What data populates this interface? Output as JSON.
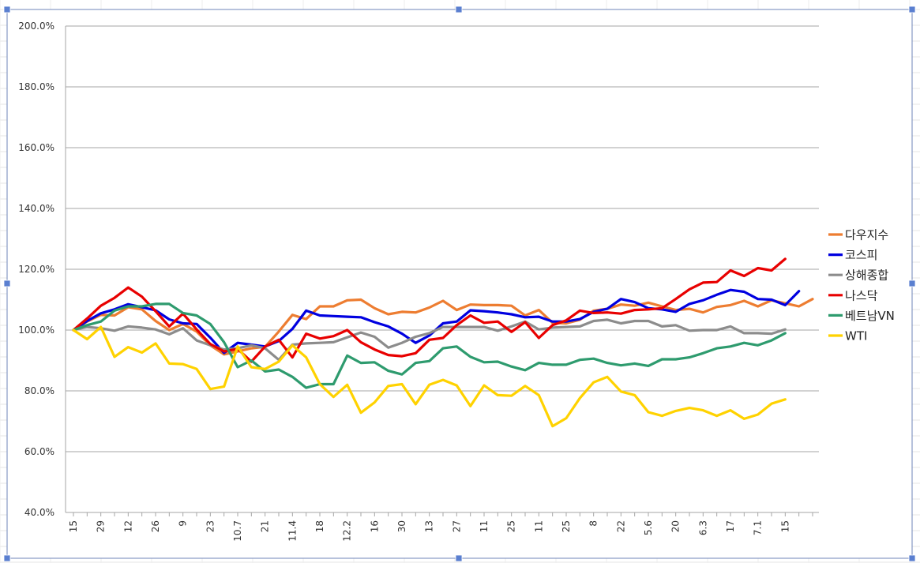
{
  "chart_data": {
    "type": "line",
    "title": "",
    "xlabel": "",
    "ylabel": "",
    "ylim": [
      40,
      200
    ],
    "y_ticks": [
      "200.0%",
      "180.0%",
      "160.0%",
      "140.0%",
      "120.0%",
      "100.0%",
      "80.0%",
      "60.0%",
      "40.0%"
    ],
    "y_tick_values": [
      200,
      180,
      160,
      140,
      120,
      100,
      80,
      60,
      40
    ],
    "x_tick_labels": [
      "15",
      "29",
      "12",
      "26",
      "9",
      "23",
      "10.7",
      "21",
      "11.4",
      "18",
      "12.2",
      "16",
      "30",
      "13",
      "27",
      "11",
      "25",
      "11",
      "25",
      "8",
      "22",
      "5.6",
      "20",
      "6.3",
      "17",
      "7.1",
      "15"
    ],
    "point_count": 55,
    "grid": "horizontal",
    "legend_position": "right",
    "series": [
      {
        "name": "다우지수",
        "color": "#ED7D31",
        "values": [
          100.0,
          102.8,
          105.0,
          104.8,
          107.5,
          106.8,
          103.0,
          100.0,
          102.0,
          99.5,
          95.0,
          92.0,
          93.0,
          94.0,
          94.5,
          99.5,
          105.0,
          103.6,
          107.8,
          107.8,
          109.8,
          110.0,
          107.2,
          105.2,
          106.0,
          105.8,
          107.4,
          109.6,
          106.6,
          108.4,
          108.2,
          108.2,
          108.0,
          104.8,
          106.6,
          102.4,
          102.2,
          103.4,
          106.4,
          107.0,
          108.4,
          108.0,
          109.0,
          107.8,
          106.6,
          107.0,
          105.8,
          107.6,
          108.2,
          109.6,
          107.8,
          109.8,
          108.8,
          107.8,
          110.2
        ]
      },
      {
        "name": "코스피",
        "color": "#0000E0",
        "values": [
          100.0,
          103.0,
          105.5,
          106.8,
          108.5,
          107.5,
          106.5,
          103.5,
          102.2,
          102.0,
          97.5,
          92.5,
          95.8,
          95.2,
          94.6,
          96.4,
          100.4,
          106.4,
          104.8,
          104.6,
          104.4,
          104.2,
          102.6,
          101.2,
          98.8,
          95.8,
          98.2,
          102.2,
          102.8,
          106.5,
          106.2,
          105.8,
          105.2,
          104.2,
          104.4,
          102.8,
          102.8,
          103.6,
          106.0,
          107.0,
          110.2,
          109.2,
          107.2,
          106.8,
          106.0,
          108.6,
          109.8,
          111.6,
          113.2,
          112.6,
          110.2,
          110.0,
          108.2,
          112.8
        ]
      },
      {
        "name": "상해종합",
        "color": "#8C8C8C",
        "values": [
          100.0,
          101.0,
          100.6,
          99.8,
          101.2,
          100.8,
          100.2,
          98.6,
          100.6,
          96.6,
          95.0,
          93.6,
          94.0,
          95.0,
          94.0,
          90.2,
          95.2,
          95.6,
          95.8,
          96.0,
          97.6,
          99.2,
          97.8,
          94.2,
          95.8,
          97.8,
          99.0,
          101.0,
          101.0,
          101.0,
          101.0,
          99.8,
          101.2,
          102.8,
          100.2,
          100.8,
          101.0,
          101.2,
          103.0,
          103.4,
          102.2,
          103.0,
          103.0,
          101.2,
          101.6,
          99.8,
          100.0,
          100.0,
          101.2,
          99.0,
          99.0,
          98.8,
          100.2
        ]
      },
      {
        "name": "나스닥",
        "color": "#E80000",
        "values": [
          100.0,
          103.8,
          108.0,
          110.6,
          114.0,
          111.0,
          106.2,
          101.2,
          105.4,
          100.2,
          95.4,
          93.0,
          93.8,
          89.6,
          94.6,
          96.8,
          91.0,
          98.8,
          97.2,
          98.0,
          100.0,
          96.0,
          93.6,
          91.8,
          91.4,
          92.4,
          96.8,
          97.4,
          101.6,
          104.8,
          102.4,
          102.8,
          99.4,
          102.6,
          97.4,
          101.6,
          103.2,
          106.4,
          105.6,
          105.8,
          105.4,
          106.6,
          106.8,
          107.2,
          110.2,
          113.4,
          115.6,
          115.8,
          119.6,
          117.8,
          120.4,
          119.6,
          123.4
        ]
      },
      {
        "name": "베트남VN",
        "color": "#2E9B6E",
        "values": [
          100.0,
          101.6,
          102.8,
          106.4,
          107.8,
          107.8,
          108.6,
          108.6,
          105.6,
          104.8,
          102.0,
          96.0,
          87.8,
          90.0,
          86.4,
          87.0,
          84.6,
          81.0,
          82.2,
          82.2,
          91.6,
          89.2,
          89.4,
          86.6,
          85.4,
          89.2,
          89.8,
          94.0,
          94.6,
          91.2,
          89.4,
          89.6,
          88.0,
          86.8,
          89.2,
          88.6,
          88.6,
          90.2,
          90.6,
          89.2,
          88.4,
          89.0,
          88.2,
          90.4,
          90.4,
          91.0,
          92.4,
          94.0,
          94.6,
          95.8,
          95.0,
          96.6,
          99.0
        ]
      },
      {
        "name": "WTI",
        "color": "#FFD200",
        "values": [
          100.0,
          97.0,
          101.0,
          91.2,
          94.4,
          92.6,
          95.6,
          89.0,
          88.8,
          87.2,
          80.6,
          81.4,
          94.6,
          87.8,
          87.2,
          89.6,
          95.0,
          91.0,
          82.2,
          78.0,
          82.0,
          72.8,
          76.2,
          81.6,
          82.2,
          75.6,
          82.0,
          83.6,
          81.8,
          75.0,
          81.8,
          78.6,
          78.4,
          81.6,
          78.6,
          68.4,
          71.0,
          77.6,
          82.8,
          84.6,
          79.8,
          78.6,
          73.0,
          71.8,
          73.4,
          74.4,
          73.6,
          71.8,
          73.6,
          70.8,
          72.2,
          75.8,
          77.2
        ]
      }
    ]
  }
}
